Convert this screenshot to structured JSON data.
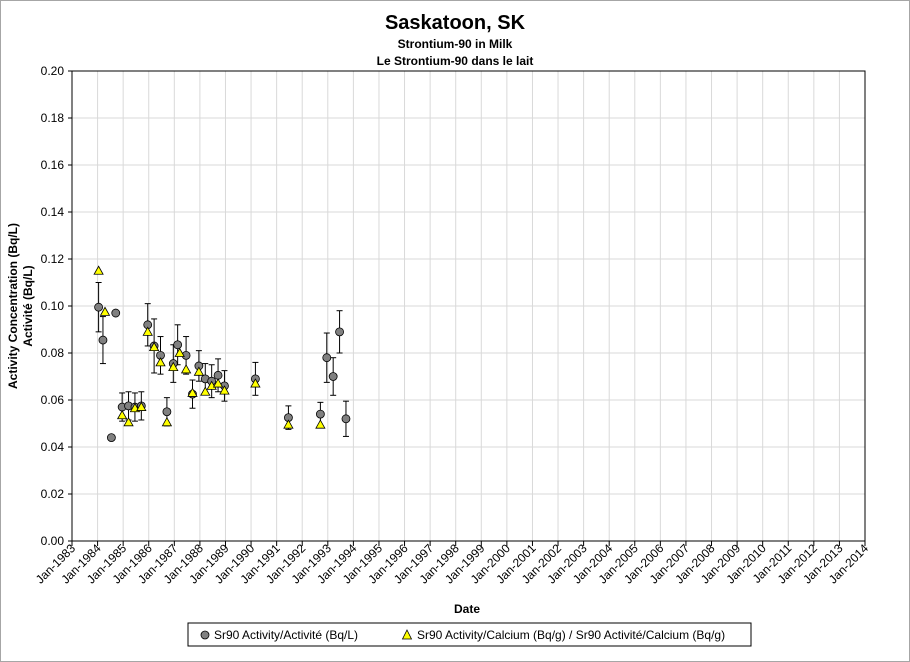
{
  "chart_data": {
    "type": "scatter",
    "title": "Saskatoon, SK",
    "subtitle_lines": [
      "Strontium-90 in Milk",
      "Le Strontium-90 dans le lait"
    ],
    "xlabel": "Date",
    "ylabel_lines": [
      "Activity Concentration (Bq/L)",
      "Activité (Bq/L)"
    ],
    "ylim": [
      0,
      0.2
    ],
    "y_ticks": [
      "0.00",
      "0.02",
      "0.04",
      "0.06",
      "0.08",
      "0.10",
      "0.12",
      "0.14",
      "0.16",
      "0.18",
      "0.20"
    ],
    "x_ticks": [
      "Jan-1983",
      "Jan-1984",
      "Jan-1985",
      "Jan-1986",
      "Jan-1987",
      "Jan-1988",
      "Jan-1989",
      "Jan-1990",
      "Jan-1991",
      "Jan-1992",
      "Jan-1993",
      "Jan-1994",
      "Jan-1995",
      "Jan-1996",
      "Jan-1997",
      "Jan-1998",
      "Jan-1999",
      "Jan-2000",
      "Jan-2001",
      "Jan-2002",
      "Jan-2003",
      "Jan-2004",
      "Jan-2005",
      "Jan-2006",
      "Jan-2007",
      "Jan-2008",
      "Jan-2009",
      "Jan-2010",
      "Jan-2011",
      "Jan-2012",
      "Jan-2013",
      "Jan-2014"
    ],
    "x_range_years": [
      1983,
      2014
    ],
    "legend_position": "bottom",
    "colors": {
      "activity_marker": "#808080",
      "calcium_marker": "#ffff00",
      "marker_edge": "#000000"
    },
    "series": [
      {
        "name": "Sr90 Activity/Activité (Bq/L)",
        "marker": "circle",
        "points": [
          {
            "x": 1984.04,
            "y": 0.0995,
            "err": 0.0105
          },
          {
            "x": 1984.21,
            "y": 0.0855,
            "err": 0.01
          },
          {
            "x": 1984.54,
            "y": 0.044,
            "err": 0
          },
          {
            "x": 1984.71,
            "y": 0.097,
            "err": 0
          },
          {
            "x": 1984.96,
            "y": 0.057,
            "err": 0.006
          },
          {
            "x": 1985.21,
            "y": 0.0575,
            "err": 0.006
          },
          {
            "x": 1985.46,
            "y": 0.057,
            "err": 0.006
          },
          {
            "x": 1985.71,
            "y": 0.0575,
            "err": 0.006
          },
          {
            "x": 1985.96,
            "y": 0.092,
            "err": 0.009
          },
          {
            "x": 1986.21,
            "y": 0.083,
            "err": 0.0115
          },
          {
            "x": 1986.46,
            "y": 0.079,
            "err": 0.008
          },
          {
            "x": 1986.71,
            "y": 0.055,
            "err": 0.006
          },
          {
            "x": 1986.96,
            "y": 0.0755,
            "err": 0.008
          },
          {
            "x": 1987.13,
            "y": 0.0835,
            "err": 0.0085
          },
          {
            "x": 1987.46,
            "y": 0.079,
            "err": 0.008
          },
          {
            "x": 1987.71,
            "y": 0.0625,
            "err": 0.006
          },
          {
            "x": 1987.96,
            "y": 0.0745,
            "err": 0.0065
          },
          {
            "x": 1988.21,
            "y": 0.069,
            "err": 0.0065
          },
          {
            "x": 1988.46,
            "y": 0.068,
            "err": 0.007
          },
          {
            "x": 1988.71,
            "y": 0.0705,
            "err": 0.007
          },
          {
            "x": 1988.96,
            "y": 0.066,
            "err": 0.0065
          },
          {
            "x": 1990.17,
            "y": 0.069,
            "err": 0.007
          },
          {
            "x": 1991.46,
            "y": 0.0525,
            "err": 0.005
          },
          {
            "x": 1992.71,
            "y": 0.054,
            "err": 0.005
          },
          {
            "x": 1992.96,
            "y": 0.078,
            "err": 0.0105
          },
          {
            "x": 1993.21,
            "y": 0.07,
            "err": 0.008
          },
          {
            "x": 1993.46,
            "y": 0.089,
            "err": 0.009
          },
          {
            "x": 1993.71,
            "y": 0.052,
            "err": 0.0075
          }
        ]
      },
      {
        "name": "Sr90 Activity/Calcium (Bq/g) / Sr90 Activité/Calcium (Bq/g)",
        "marker": "triangle",
        "points": [
          {
            "x": 1984.04,
            "y": 0.115
          },
          {
            "x": 1984.29,
            "y": 0.0975
          },
          {
            "x": 1984.96,
            "y": 0.0535
          },
          {
            "x": 1985.21,
            "y": 0.0505
          },
          {
            "x": 1985.46,
            "y": 0.0565
          },
          {
            "x": 1985.71,
            "y": 0.057
          },
          {
            "x": 1985.96,
            "y": 0.089
          },
          {
            "x": 1986.21,
            "y": 0.0825
          },
          {
            "x": 1986.46,
            "y": 0.076
          },
          {
            "x": 1986.71,
            "y": 0.0505
          },
          {
            "x": 1986.96,
            "y": 0.074
          },
          {
            "x": 1987.21,
            "y": 0.08
          },
          {
            "x": 1987.46,
            "y": 0.073
          },
          {
            "x": 1987.71,
            "y": 0.063
          },
          {
            "x": 1987.96,
            "y": 0.072
          },
          {
            "x": 1988.21,
            "y": 0.0635
          },
          {
            "x": 1988.46,
            "y": 0.066
          },
          {
            "x": 1988.71,
            "y": 0.067
          },
          {
            "x": 1988.96,
            "y": 0.064
          },
          {
            "x": 1990.17,
            "y": 0.067
          },
          {
            "x": 1991.46,
            "y": 0.0495
          },
          {
            "x": 1992.71,
            "y": 0.0495
          }
        ]
      }
    ]
  }
}
